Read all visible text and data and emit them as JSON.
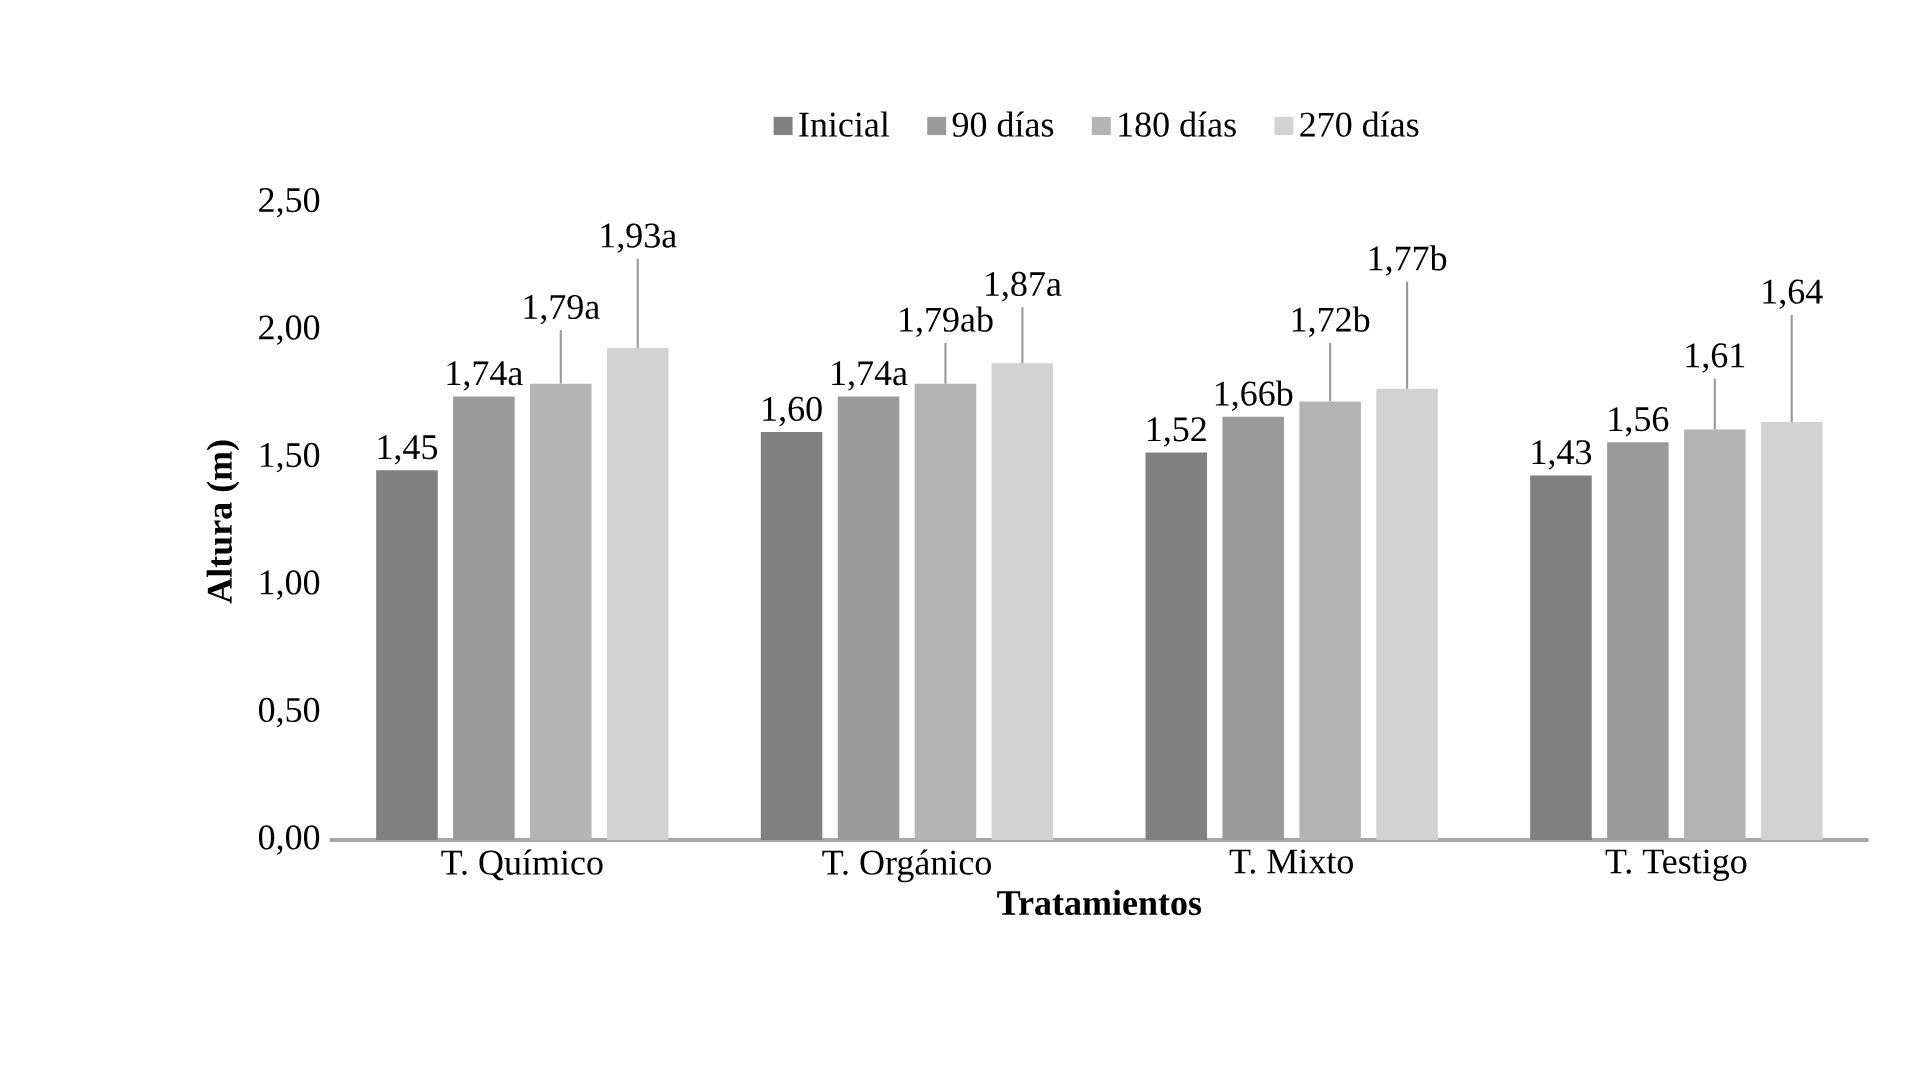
{
  "chart_data": {
    "type": "bar",
    "xlabel": "Tratamientos",
    "ylabel": "Altura (m)",
    "categories": [
      "T. Químico",
      "T. Orgánico",
      "T. Mixto",
      "T. Testigo"
    ],
    "series": [
      {
        "name": "Inicial",
        "color": "#808080",
        "values": [
          1.45,
          1.6,
          1.52,
          1.43
        ],
        "value_labels": [
          "1,45",
          "1,60",
          "1,52",
          "1,43"
        ]
      },
      {
        "name": "90 días",
        "color": "#9a9a9a",
        "values": [
          1.74,
          1.74,
          1.66,
          1.56
        ],
        "value_labels": [
          "1,74a",
          "1,74a",
          "1,66b",
          "1,56"
        ]
      },
      {
        "name": "180 días",
        "color": "#b4b4b4",
        "values": [
          1.79,
          1.79,
          1.72,
          1.61
        ],
        "value_labels": [
          "1,79a",
          "1,79ab",
          "1,72b",
          "1,61"
        ],
        "errors": [
          [
            1.79,
            2.0
          ],
          [
            1.79,
            1.95
          ],
          [
            1.72,
            1.95
          ],
          [
            1.61,
            1.81
          ]
        ]
      },
      {
        "name": "270 días",
        "color": "#d2d2d2",
        "values": [
          1.93,
          1.87,
          1.77,
          1.64
        ],
        "value_labels": [
          "1,93a",
          "1,87a",
          "1,77b",
          "1,64"
        ],
        "errors": [
          [
            1.93,
            2.28
          ],
          [
            1.87,
            2.09
          ],
          [
            1.77,
            2.19
          ],
          [
            1.64,
            2.06
          ]
        ]
      }
    ],
    "ylim": [
      0,
      2.5
    ],
    "yticks": [
      {
        "value": 0,
        "label": "0,00"
      },
      {
        "value": 0.5,
        "label": "0,50"
      },
      {
        "value": 1,
        "label": "1,00"
      },
      {
        "value": 1.5,
        "label": "1,50"
      },
      {
        "value": 2,
        "label": "2,00"
      },
      {
        "value": 2.5,
        "label": "2,50"
      }
    ],
    "legend": "top",
    "grid": false
  }
}
